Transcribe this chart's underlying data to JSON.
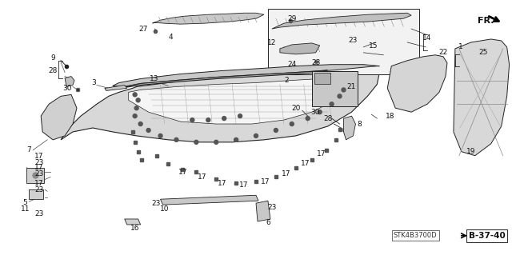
{
  "bg_color": "#ffffff",
  "fig_width": 6.4,
  "fig_height": 3.19,
  "dpi": 100,
  "watermark": "STK4B3700D",
  "ref": "B-37-40",
  "label_fontsize": 6.5,
  "line_color": "#222222",
  "fill_light": "#e8e8e8",
  "fill_mid": "#cccccc",
  "fill_dark": "#aaaaaa"
}
